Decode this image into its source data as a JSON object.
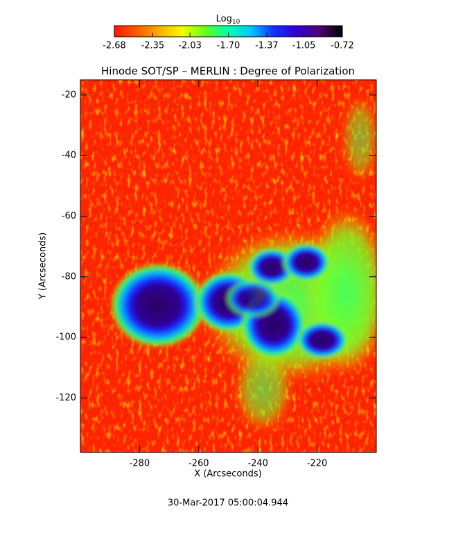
{
  "chart_data": {
    "type": "image",
    "title": "Hinode SOT/SP – MERLIN : Degree of Polarization",
    "x_label": "X (Arcseconds)",
    "y_label": "Y (Arcseconds)",
    "xlim": [
      -300,
      -200
    ],
    "xticks": [
      -280,
      -260,
      -240,
      -220
    ],
    "ylim": [
      -138,
      -15
    ],
    "yticks": [
      -20,
      -40,
      -60,
      -80,
      -100,
      -120
    ],
    "colorbar": {
      "label": "Log",
      "label_subscript": "10",
      "lim": [
        -2.68,
        -0.72
      ],
      "ticks": [
        -2.68,
        -2.35,
        -2.03,
        {
          "value": -1.7,
          "label": "-1.70"
        },
        -1.37,
        -1.05,
        -0.72
      ],
      "colormap": [
        "#ff1a00",
        "#ff5a00",
        "#ffb000",
        "#f0ff00",
        "#60ff20",
        "#00ffb0",
        "#00c8ff",
        "#1030ff",
        "#3000d0",
        "#500070",
        "#000000"
      ]
    },
    "footer": "30-Mar-2017 05:00:04.944"
  }
}
